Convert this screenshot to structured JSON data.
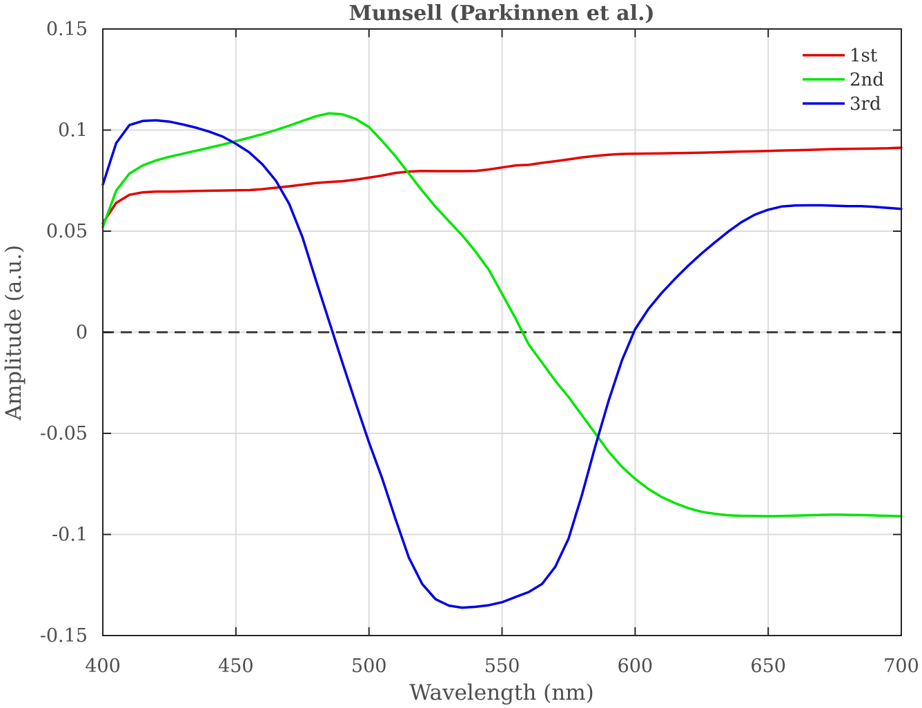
{
  "chart_data": {
    "type": "line",
    "title": "Munsell (Parkinnen et al.)",
    "xlabel": "Wavelength (nm)",
    "ylabel": "Amplitude (a.u.)",
    "xlim": [
      400,
      700
    ],
    "ylim": [
      -0.15,
      0.15
    ],
    "xticks": [
      "400",
      "450",
      "500",
      "550",
      "600",
      "650",
      "700"
    ],
    "yticks": [
      "-0.15",
      "-0.1",
      "-0.05",
      "0",
      "0.05",
      "0.1",
      "0.15"
    ],
    "grid": true,
    "zero_line": "dashed",
    "legend_position": "top-right",
    "x": [
      400,
      405,
      410,
      415,
      420,
      425,
      430,
      435,
      440,
      445,
      450,
      455,
      460,
      465,
      470,
      475,
      480,
      485,
      490,
      495,
      500,
      505,
      510,
      515,
      520,
      525,
      530,
      535,
      540,
      545,
      550,
      555,
      560,
      565,
      570,
      575,
      580,
      585,
      590,
      595,
      600,
      605,
      610,
      615,
      620,
      625,
      630,
      635,
      640,
      645,
      650,
      655,
      660,
      665,
      670,
      675,
      680,
      685,
      690,
      695,
      700
    ],
    "series": [
      {
        "name": "1st",
        "color": "#e60000",
        "values": [
          0.054,
          0.064,
          0.068,
          0.0692,
          0.0696,
          0.0696,
          0.0697,
          0.0699,
          0.07,
          0.0701,
          0.0702,
          0.0703,
          0.0708,
          0.0715,
          0.0722,
          0.073,
          0.0738,
          0.0743,
          0.0747,
          0.0755,
          0.0765,
          0.0775,
          0.0788,
          0.0795,
          0.0798,
          0.0797,
          0.0797,
          0.0797,
          0.0798,
          0.0805,
          0.0815,
          0.0825,
          0.0828,
          0.0838,
          0.0846,
          0.0855,
          0.0865,
          0.0872,
          0.0878,
          0.0882,
          0.0883,
          0.0884,
          0.0885,
          0.0886,
          0.0887,
          0.0888,
          0.089,
          0.0892,
          0.0894,
          0.0895,
          0.0897,
          0.0899,
          0.09,
          0.0902,
          0.0904,
          0.0906,
          0.0907,
          0.0908,
          0.0909,
          0.091,
          0.0913
        ]
      },
      {
        "name": "2nd",
        "color": "#00e600",
        "values": [
          0.052,
          0.07,
          0.0785,
          0.0825,
          0.085,
          0.0868,
          0.0883,
          0.0898,
          0.0913,
          0.0928,
          0.0945,
          0.0962,
          0.098,
          0.1,
          0.1022,
          0.1045,
          0.1068,
          0.1083,
          0.1078,
          0.1055,
          0.1015,
          0.0945,
          0.087,
          0.0785,
          0.07,
          0.062,
          0.055,
          0.048,
          0.04,
          0.031,
          0.019,
          0.007,
          -0.006,
          -0.015,
          -0.024,
          -0.032,
          -0.041,
          -0.05,
          -0.059,
          -0.0665,
          -0.0725,
          -0.0775,
          -0.0815,
          -0.0845,
          -0.087,
          -0.0888,
          -0.0898,
          -0.0905,
          -0.0908,
          -0.0909,
          -0.091,
          -0.0909,
          -0.0907,
          -0.0905,
          -0.0903,
          -0.0902,
          -0.0903,
          -0.0904,
          -0.0906,
          -0.0908,
          -0.091
        ]
      },
      {
        "name": "3rd",
        "color": "#0000e6",
        "values": [
          0.073,
          0.0935,
          0.1025,
          0.1045,
          0.1048,
          0.1042,
          0.1028,
          0.1012,
          0.0992,
          0.0968,
          0.0932,
          0.089,
          0.083,
          0.075,
          0.0635,
          0.047,
          0.026,
          0.0055,
          -0.015,
          -0.035,
          -0.0545,
          -0.0725,
          -0.0925,
          -0.1115,
          -0.1245,
          -0.132,
          -0.1352,
          -0.1362,
          -0.1358,
          -0.135,
          -0.1335,
          -0.131,
          -0.1285,
          -0.1245,
          -0.116,
          -0.102,
          -0.0805,
          -0.0565,
          -0.034,
          -0.014,
          0.0015,
          0.0115,
          0.0195,
          0.0265,
          0.033,
          0.039,
          0.0445,
          0.0498,
          0.0545,
          0.0582,
          0.0606,
          0.0622,
          0.0627,
          0.0628,
          0.0628,
          0.0626,
          0.0624,
          0.0624,
          0.062,
          0.0615,
          0.061
        ]
      }
    ]
  }
}
